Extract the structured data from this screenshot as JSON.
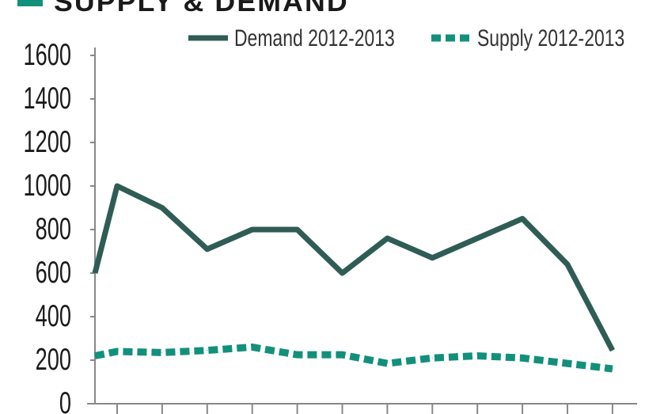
{
  "chart_data": {
    "type": "line",
    "title": "SUPPLY & DEMAND",
    "xlabel": "",
    "ylabel": "",
    "ylim": [
      0,
      1600
    ],
    "yticks": [
      0,
      200,
      400,
      600,
      800,
      1000,
      1200,
      1400,
      1600
    ],
    "x": [
      0,
      1,
      2,
      3,
      4,
      5,
      6,
      7,
      8,
      9,
      10,
      11,
      12
    ],
    "legend_position": "top",
    "grid": false,
    "series": [
      {
        "name": "Demand 2012-2013",
        "style": "solid",
        "color": "#2f5d56",
        "values": [
          600,
          1000,
          900,
          710,
          800,
          800,
          600,
          760,
          670,
          760,
          850,
          640,
          245
        ]
      },
      {
        "name": "Supply 2012-2013",
        "style": "dashed",
        "color": "#12907c",
        "values": [
          220,
          240,
          235,
          245,
          260,
          225,
          225,
          185,
          210,
          220,
          210,
          185,
          160
        ]
      }
    ]
  },
  "colors": {
    "title_swatch": "#12907c",
    "axis": "#888888"
  }
}
